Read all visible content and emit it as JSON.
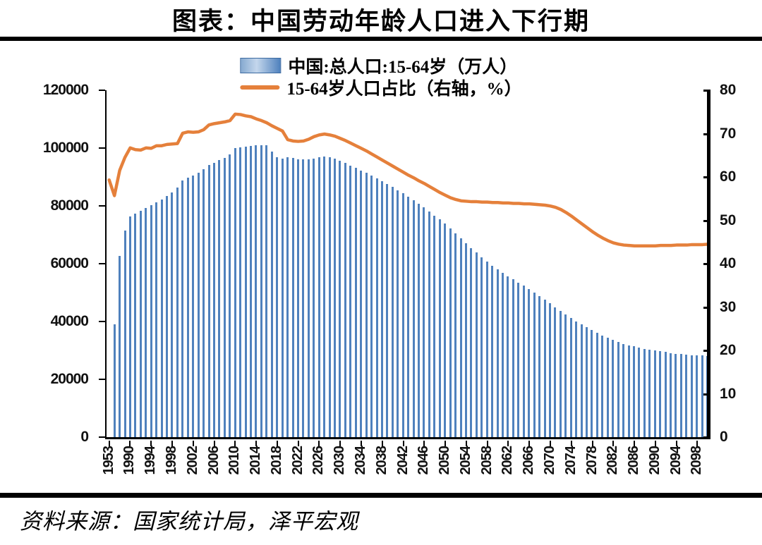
{
  "title": "图表：中国劳动年龄人口进入下行期",
  "source": "资料来源：国家统计局，泽平宏观",
  "legend": [
    {
      "marker": "bar-swatch",
      "label": "中国:总人口:15-64岁（万人）"
    },
    {
      "marker": "line-swatch",
      "label": "15-64岁人口占比（右轴，%）"
    }
  ],
  "colors": {
    "bar": "#4F81BD",
    "line": "#E5803B",
    "axis": "#000000"
  },
  "chart_data": {
    "type": "combo",
    "left_axis": {
      "min": 0,
      "max": 120000,
      "ticks": [
        0,
        20000,
        40000,
        60000,
        80000,
        100000,
        120000
      ]
    },
    "right_axis": {
      "min": 0,
      "max": 80,
      "ticks": [
        0,
        10,
        20,
        30,
        40,
        50,
        60,
        70,
        80
      ]
    },
    "x_labels_shown": [
      "1953",
      "1990",
      "1994",
      "1998",
      "2002",
      "2006",
      "2010",
      "2014",
      "2018",
      "2022",
      "2026",
      "2030",
      "2034",
      "2038",
      "2042",
      "2046",
      "2050",
      "2054",
      "2058",
      "2062",
      "2066",
      "2070",
      "2074",
      "2078",
      "2082",
      "2086",
      "2090",
      "2094",
      "2098"
    ],
    "categories": [
      "1953",
      "1964",
      "1982",
      "1987",
      "1990",
      "1991",
      "1992",
      "1993",
      "1994",
      "1995",
      "1996",
      "1997",
      "1998",
      "1999",
      "2000",
      "2001",
      "2002",
      "2003",
      "2004",
      "2005",
      "2006",
      "2007",
      "2008",
      "2009",
      "2010",
      "2011",
      "2012",
      "2013",
      "2014",
      "2015",
      "2016",
      "2017",
      "2018",
      "2019",
      "2020",
      "2021",
      "2022",
      "2023",
      "2024",
      "2025",
      "2026",
      "2027",
      "2028",
      "2029",
      "2030",
      "2031",
      "2032",
      "2033",
      "2034",
      "2035",
      "2036",
      "2037",
      "2038",
      "2039",
      "2040",
      "2041",
      "2042",
      "2043",
      "2044",
      "2045",
      "2046",
      "2047",
      "2048",
      "2049",
      "2050",
      "2051",
      "2052",
      "2053",
      "2054",
      "2055",
      "2056",
      "2057",
      "2058",
      "2059",
      "2060",
      "2061",
      "2062",
      "2063",
      "2064",
      "2065",
      "2066",
      "2067",
      "2068",
      "2069",
      "2070",
      "2071",
      "2072",
      "2073",
      "2074",
      "2075",
      "2076",
      "2077",
      "2078",
      "2079",
      "2080",
      "2081",
      "2082",
      "2083",
      "2084",
      "2085",
      "2086",
      "2087",
      "2088",
      "2089",
      "2090",
      "2091",
      "2092",
      "2093",
      "2094",
      "2095",
      "2096",
      "2097",
      "2098",
      "2099",
      "2100"
    ],
    "series": [
      {
        "name": "中国:总人口:15-64岁（万人）",
        "type": "bar",
        "axis": "left",
        "values": [
          null,
          39000,
          62600,
          71400,
          76300,
          77300,
          78300,
          79300,
          80300,
          81300,
          82300,
          83400,
          84600,
          86400,
          88900,
          89800,
          90600,
          91400,
          92700,
          94200,
          95000,
          95800,
          96700,
          97900,
          99900,
          100300,
          100500,
          100700,
          100900,
          101000,
          100900,
          98800,
          96900,
          96300,
          96800,
          96600,
          96200,
          96000,
          96100,
          96400,
          96800,
          97100,
          96900,
          96400,
          95600,
          94800,
          94000,
          93200,
          92300,
          91400,
          90500,
          89500,
          88500,
          87500,
          86500,
          85400,
          84300,
          83100,
          81900,
          80700,
          79400,
          78100,
          76700,
          75300,
          73800,
          72200,
          70500,
          68800,
          67100,
          65400,
          63800,
          62200,
          60700,
          59300,
          58000,
          56800,
          55700,
          54600,
          53500,
          52400,
          51300,
          50100,
          48900,
          47600,
          46300,
          45000,
          43700,
          42500,
          41300,
          40100,
          39000,
          38000,
          37000,
          36100,
          35200,
          34400,
          33600,
          32900,
          32300,
          31800,
          31400,
          31000,
          30600,
          30300,
          30000,
          29700,
          29400,
          29100,
          28900,
          28700,
          28500,
          28400,
          28300,
          28200,
          28100
        ]
      },
      {
        "name": "15-64岁人口占比（右轴，%）",
        "type": "line",
        "axis": "right",
        "values": [
          59.3,
          55.7,
          61.5,
          64.5,
          66.7,
          66.3,
          66.2,
          66.7,
          66.6,
          67.2,
          67.2,
          67.5,
          67.6,
          67.7,
          70.1,
          70.4,
          70.3,
          70.4,
          70.9,
          72.0,
          72.3,
          72.5,
          72.7,
          73.0,
          74.5,
          74.4,
          74.1,
          73.9,
          73.4,
          73.0,
          72.5,
          71.8,
          71.2,
          70.6,
          68.6,
          68.3,
          68.2,
          68.3,
          68.7,
          69.3,
          69.7,
          69.9,
          69.7,
          69.4,
          68.9,
          68.4,
          67.8,
          67.2,
          66.6,
          66.0,
          65.3,
          64.6,
          63.9,
          63.2,
          62.5,
          61.8,
          61.1,
          60.4,
          59.8,
          59.1,
          58.5,
          57.8,
          57.1,
          56.4,
          55.8,
          55.2,
          54.8,
          54.5,
          54.4,
          54.3,
          54.3,
          54.2,
          54.2,
          54.1,
          54.1,
          54.0,
          54.0,
          53.9,
          53.9,
          53.8,
          53.8,
          53.7,
          53.6,
          53.5,
          53.3,
          53.0,
          52.5,
          51.8,
          51.0,
          50.1,
          49.2,
          48.3,
          47.4,
          46.6,
          45.9,
          45.3,
          44.8,
          44.5,
          44.3,
          44.2,
          44.1,
          44.1,
          44.1,
          44.1,
          44.1,
          44.2,
          44.2,
          44.2,
          44.3,
          44.3,
          44.3,
          44.4,
          44.4,
          44.4,
          44.5
        ]
      }
    ]
  }
}
